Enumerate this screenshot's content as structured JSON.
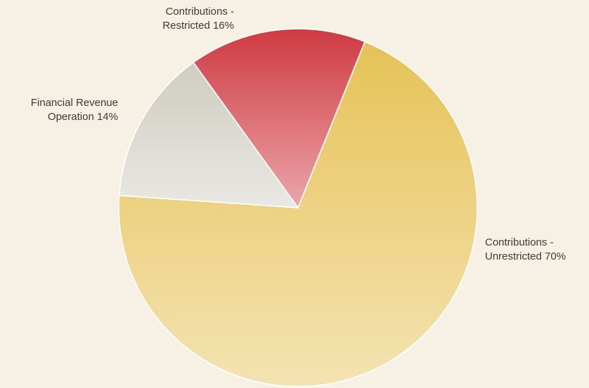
{
  "chart_data": {
    "type": "pie",
    "categories": [
      "Contributions - Unrestricted",
      "Financial Revenue Operation",
      "Contributions - Restricted"
    ],
    "values": [
      70,
      14,
      16
    ],
    "value_labels": [
      "70%",
      "14%",
      "16%"
    ],
    "colors": [
      "#e6c256",
      "#cfccc0",
      "#cf3a42"
    ]
  }
}
